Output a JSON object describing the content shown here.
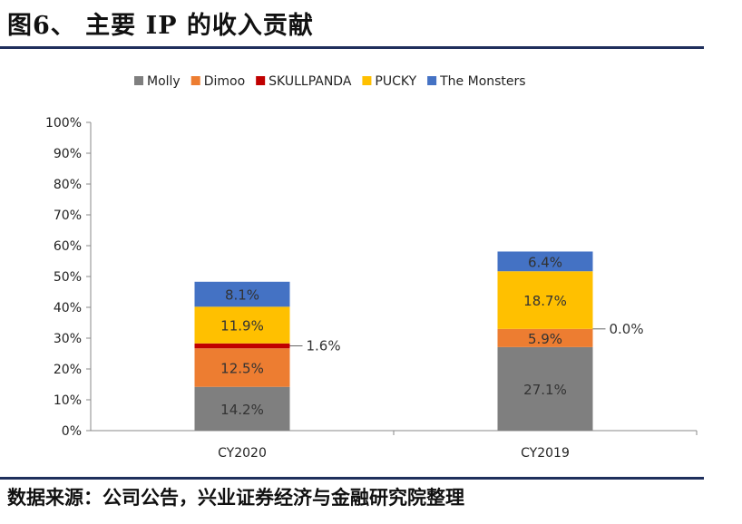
{
  "title": "图6、 主要 IP 的收入贡献",
  "source": "数据来源：公司公告，兴业证券经济与金融研究院整理",
  "chart_data": {
    "type": "bar",
    "stacked": true,
    "categories": [
      "CY2020",
      "CY2019"
    ],
    "series": [
      {
        "name": "Molly",
        "color": "#7f7f7f",
        "values": [
          14.2,
          27.1
        ],
        "labels": [
          "14.2%",
          "27.1%"
        ]
      },
      {
        "name": "Dimoo",
        "color": "#ed7d31",
        "values": [
          12.5,
          5.9
        ],
        "labels": [
          "12.5%",
          "5.9%"
        ]
      },
      {
        "name": "SKULLPANDA",
        "color": "#c00000",
        "values": [
          1.6,
          0.0
        ],
        "labels": [
          "1.6%",
          "0.0%"
        ]
      },
      {
        "name": "PUCKY",
        "color": "#ffc000",
        "values": [
          11.9,
          18.7
        ],
        "labels": [
          "11.9%",
          "18.7%"
        ]
      },
      {
        "name": "The Monsters",
        "color": "#4472c4",
        "values": [
          8.1,
          6.4
        ],
        "labels": [
          "8.1%",
          "6.4%"
        ]
      }
    ],
    "ylim": [
      0,
      100
    ],
    "yticks": [
      "0%",
      "10%",
      "20%",
      "30%",
      "40%",
      "50%",
      "60%",
      "70%",
      "80%",
      "90%",
      "100%"
    ],
    "legend": "top",
    "grid": false
  }
}
